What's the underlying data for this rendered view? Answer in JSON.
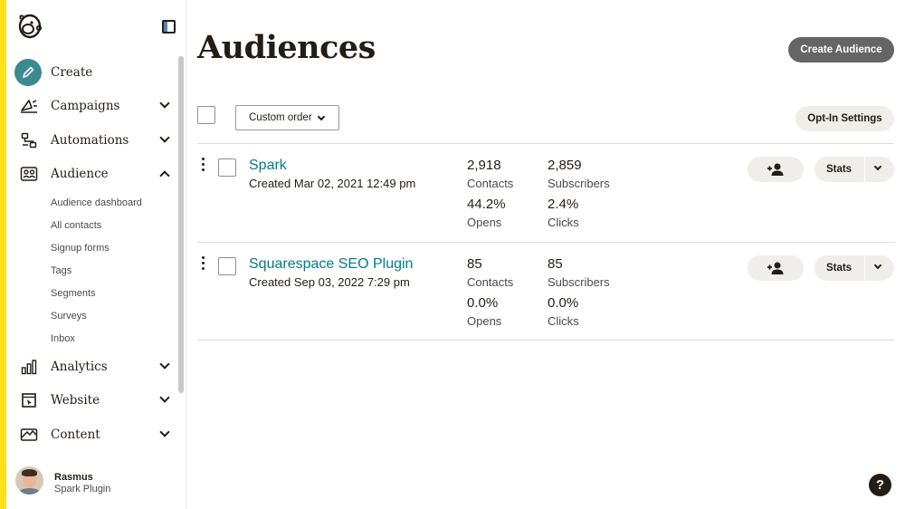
{
  "sidebar": {
    "nav": [
      {
        "label": "Create",
        "icon": "pencil-icon"
      },
      {
        "label": "Campaigns",
        "icon": "megaphone-icon"
      },
      {
        "label": "Automations",
        "icon": "automation-icon"
      },
      {
        "label": "Audience",
        "icon": "audience-icon"
      },
      {
        "label": "Analytics",
        "icon": "bar-chart-icon"
      },
      {
        "label": "Website",
        "icon": "website-icon"
      },
      {
        "label": "Content",
        "icon": "content-icon"
      }
    ],
    "audience_sub": [
      "Audience dashboard",
      "All contacts",
      "Signup forms",
      "Tags",
      "Segments",
      "Surveys",
      "Inbox"
    ],
    "user": {
      "name": "Rasmus",
      "org": "Spark Plugin"
    }
  },
  "header": {
    "title": "Audiences",
    "create_label": "Create Audience"
  },
  "toolbar": {
    "sort_label": "Custom order",
    "optin_label": "Opt-In Settings"
  },
  "audiences": [
    {
      "name": "Spark",
      "created": "Created Mar 02, 2021 12:49 pm",
      "contacts": "2,918",
      "contacts_label": "Contacts",
      "subscribers": "2,859",
      "subscribers_label": "Subscribers",
      "opens": "44.2%",
      "opens_label": "Opens",
      "clicks": "2.4%",
      "clicks_label": "Clicks",
      "stats_label": "Stats"
    },
    {
      "name": "Squarespace SEO Plugin",
      "created": "Created Sep 03, 2022 7:29 pm",
      "contacts": "85",
      "contacts_label": "Contacts",
      "subscribers": "85",
      "subscribers_label": "Subscribers",
      "opens": "0.0%",
      "opens_label": "Opens",
      "clicks": "0.0%",
      "clicks_label": "Clicks",
      "stats_label": "Stats"
    }
  ],
  "help_label": "?",
  "colors": {
    "accent_yellow": "#ffe01b",
    "link_teal": "#007c89",
    "create_teal": "#3b8a8e",
    "dark_button": "#656565"
  }
}
